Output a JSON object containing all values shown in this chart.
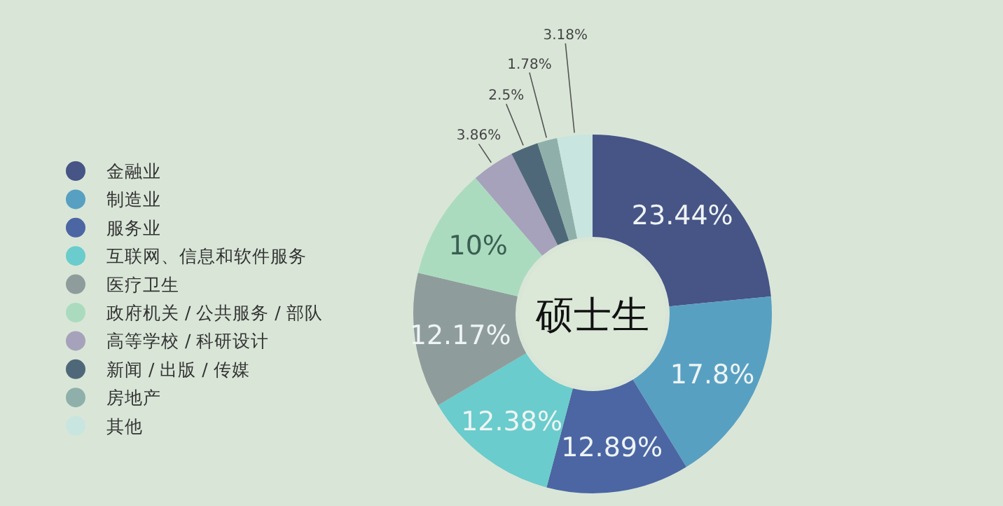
{
  "chart_data": {
    "type": "donut",
    "title": "硕士生",
    "categories": [
      "金融业",
      "制造业",
      "服务业",
      "互联网、信息和软件服务",
      "医疗卫生",
      "政府机关 / 公共服务 / 部队",
      "高等学校 / 科研设计",
      "新闻 / 出版 / 传媒",
      "房地产",
      "其他"
    ],
    "values": [
      23.44,
      17.8,
      12.89,
      12.38,
      12.17,
      10,
      3.86,
      2.5,
      1.78,
      3.18
    ],
    "value_labels": [
      "23.44%",
      "17.8%",
      "12.89%",
      "12.38%",
      "12.17%",
      "10%",
      "3.86%",
      "2.5%",
      "1.78%",
      "3.18%"
    ],
    "colors": [
      "#475486",
      "#58a0c2",
      "#4b66a3",
      "#6acccc",
      "#8f9c9c",
      "#abdbbf",
      "#a6a2bb",
      "#4f6879",
      "#8fb0aa",
      "#c8e5df"
    ],
    "legend": "left"
  }
}
